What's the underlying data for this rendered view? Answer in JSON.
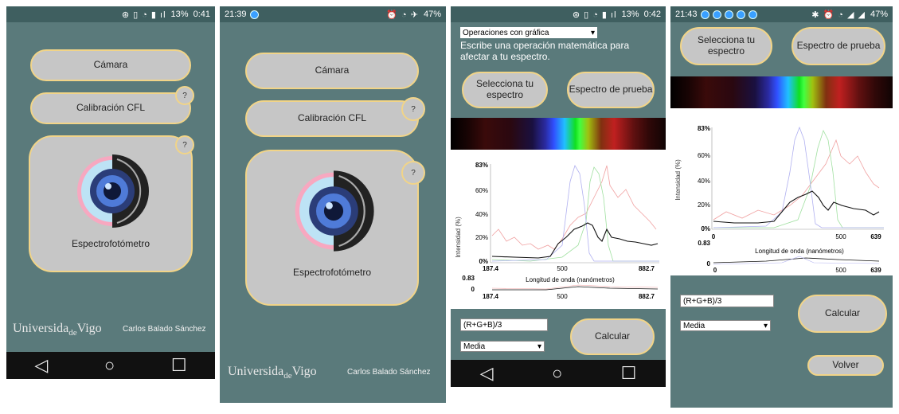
{
  "screens": [
    {
      "status": {
        "left": "",
        "right": "13%",
        "time": "0:41"
      },
      "buttons": {
        "camera": "Cámara",
        "calibration": "Calibración CFL",
        "spectro": "Espectrofotómetro",
        "help": "?"
      },
      "footer": {
        "university": "Universida",
        "university_de": "de",
        "university_end": "Vigo",
        "author": "Carlos Balado Sánchez"
      },
      "nav": {
        "back": "◁",
        "home": "○",
        "recent": "☐"
      }
    },
    {
      "status": {
        "time": "21:39",
        "battery": "47%"
      },
      "buttons": {
        "camera": "Cámara",
        "calibration": "Calibración CFL",
        "spectro": "Espectrofotómetro",
        "help": "?"
      },
      "footer": {
        "university": "Universida",
        "university_de": "de",
        "university_end": "Vigo",
        "author": "Carlos Balado Sánchez"
      }
    },
    {
      "status": {
        "right": "13%",
        "time": "0:42"
      },
      "dropdown": "Operaciones con gráfica",
      "instruction": "Escribe una operación matemática para afectar a tu espectro.",
      "buttons": {
        "select_spectrum": "Selecciona tu espectro",
        "test_spectrum": "Espectro de prueba",
        "calculate": "Calcular"
      },
      "formula": "(R+G+B)/3",
      "mode": "Media",
      "graph": {
        "ylabel": "Intensidad (%)",
        "xlabel": "Longitud de onda (nanómetros)",
        "yticks": [
          "83%",
          "60%",
          "40%",
          "20%",
          "0%"
        ],
        "xticks": [
          "187.4",
          "500",
          "882.7"
        ],
        "mini_top": "0.83",
        "mini_zero": "0",
        "mini_xticks": [
          "187.4",
          "500",
          "882.7"
        ]
      },
      "nav": {
        "back": "◁",
        "home": "○",
        "recent": "☐"
      }
    },
    {
      "status": {
        "time": "21:43",
        "battery": "47%"
      },
      "buttons": {
        "select_spectrum": "Selecciona tu espectro",
        "test_spectrum": "Espectro de prueba",
        "calculate": "Calcular",
        "back": "Volver"
      },
      "formula": "(R+G+B)/3",
      "mode": "Media",
      "graph": {
        "ylabel": "Intensidad (%)",
        "xlabel": "Longitud de onda (nanómetros)",
        "yticks": [
          "83%",
          "60%",
          "40%",
          "20%",
          "0%"
        ],
        "xticks": [
          "0",
          "500",
          "639"
        ],
        "mini_top": "0.83",
        "mini_zero": "0",
        "mini_xticks": [
          "0",
          "500",
          "639"
        ]
      }
    }
  ]
}
